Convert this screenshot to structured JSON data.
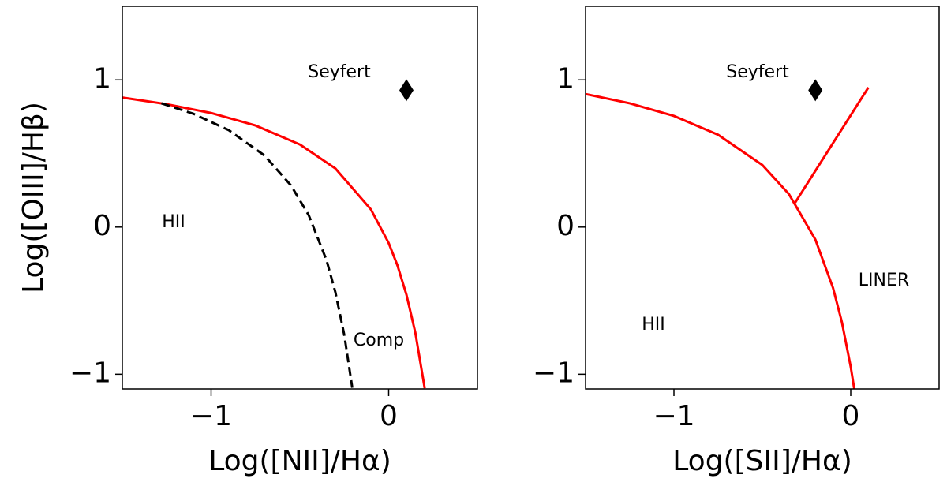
{
  "chart_data": [
    {
      "type": "line",
      "xlabel": "Log([NII]/Hα)",
      "ylabel": "Log([OIII]/Hβ)",
      "xlim": [
        -1.5,
        0.5
      ],
      "ylim": [
        -1.1,
        1.5
      ],
      "xticks": [
        {
          "value": -1,
          "label": "−1"
        },
        0
      ],
      "yticks": [
        {
          "value": -1,
          "label": "−1"
        },
        0,
        1
      ],
      "annotations": [
        "Seyfert",
        "HII",
        "Comp"
      ],
      "series": [
        {
          "type": "line",
          "color": "#ff0000",
          "style": "solid",
          "x": [
            -1.5,
            -1.25,
            -1.0,
            -0.75,
            -0.5,
            -0.3,
            -0.1,
            0.0,
            0.05,
            0.1,
            0.15,
            0.203
          ],
          "y": [
            0.88,
            0.835,
            0.775,
            0.69,
            0.561,
            0.398,
            0.12,
            -0.108,
            -0.262,
            -0.459,
            -0.716,
            -1.095
          ]
        },
        {
          "type": "line",
          "color": "#000000",
          "style": "dashed",
          "x": [
            -1.28,
            -1.1,
            -0.9,
            -0.7,
            -0.55,
            -0.45,
            -0.35,
            -0.3,
            -0.25,
            -0.205
          ],
          "y": [
            0.841,
            0.77,
            0.658,
            0.487,
            0.283,
            0.08,
            -0.225,
            -0.443,
            -0.733,
            -1.092
          ]
        },
        {
          "type": "scatter",
          "marker": "diamond",
          "color": "#000000",
          "x": [
            0.1
          ],
          "y": [
            0.93
          ]
        }
      ]
    },
    {
      "type": "line",
      "xlabel": "Log([SII]/Hα)",
      "xlim": [
        -1.5,
        0.5
      ],
      "ylim": [
        -1.1,
        1.5
      ],
      "xticks": [
        {
          "value": -1,
          "label": "−1"
        },
        0
      ],
      "yticks": [
        {
          "value": -1,
          "label": "−1"
        },
        0,
        1
      ],
      "annotations": [
        "Seyfert",
        "LINER",
        "HII"
      ],
      "series": [
        {
          "type": "line",
          "color": "#ff0000",
          "style": "solid",
          "x": [
            -1.5,
            -1.25,
            -1.0,
            -0.75,
            -0.5,
            -0.35,
            -0.2,
            -0.1,
            -0.05,
            0.0,
            0.02
          ],
          "y": [
            0.904,
            0.841,
            0.755,
            0.627,
            0.422,
            0.225,
            -0.085,
            -0.414,
            -0.646,
            -0.95,
            -1.1
          ]
        },
        {
          "type": "line",
          "color": "#ff0000",
          "style": "solid",
          "x": [
            -0.315,
            0.1
          ],
          "y": [
            0.165,
            0.949
          ]
        },
        {
          "type": "scatter",
          "marker": "diamond",
          "color": "#000000",
          "x": [
            -0.2
          ],
          "y": [
            0.93
          ]
        }
      ]
    }
  ]
}
